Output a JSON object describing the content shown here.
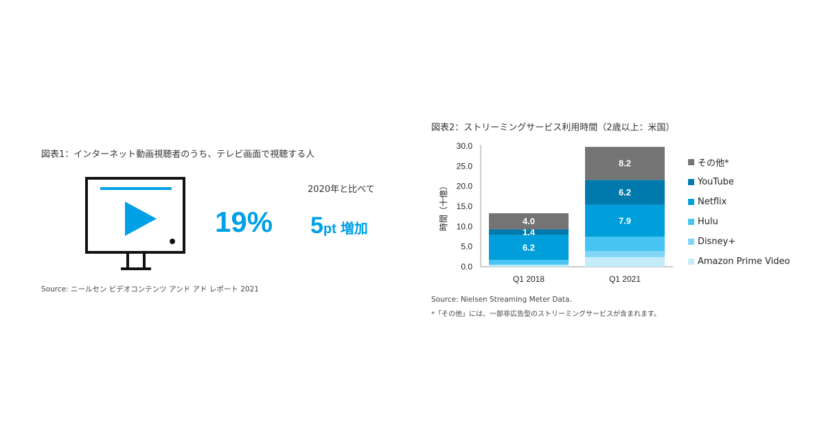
{
  "figure1": {
    "title": "図表1：インターネット動画視聴者のうち、テレビ画面で視聴する人",
    "percentage": "19%",
    "compare_label": "2020年と比べて",
    "increase_number": "5",
    "increase_unit": "pt",
    "increase_word": "増加",
    "source": "Source: ニールセン ビデオコンテンツ アンド アド レポート 2021",
    "icon": "tv-play-icon",
    "accent_color": "#00a0e6"
  },
  "figure2": {
    "title": "図表2：ストリーミングサービス利用時間（2歳以上：米国）",
    "source": "Source: Nielsen Streaming Meter Data.",
    "note": "*「その他」には、一部非広告型のストリーミングサービスが含まれます。"
  },
  "chart_data": {
    "type": "bar",
    "stacked": true,
    "categories": [
      "Q1 2018",
      "Q1 2021"
    ],
    "ylabel": "時間（十億）",
    "ylim": [
      0,
      30
    ],
    "yticks": [
      "0.0",
      "5.0",
      "10.0",
      "15.0",
      "20.0",
      "25.0",
      "30.0"
    ],
    "grid": false,
    "legend_position": "right",
    "series": [
      {
        "name": "Amazon Prime Video",
        "color": "#c5ecfa",
        "values": [
          0.4,
          2.4
        ],
        "labels": [
          "",
          ""
        ]
      },
      {
        "name": "Disney+",
        "color": "#7fd6f6",
        "values": [
          0.2,
          1.5
        ],
        "labels": [
          "",
          ""
        ]
      },
      {
        "name": "Hulu",
        "color": "#47c4f1",
        "values": [
          1.1,
          3.6
        ],
        "labels": [
          "",
          ""
        ]
      },
      {
        "name": "Netflix",
        "color": "#009fdc",
        "values": [
          6.2,
          7.9
        ],
        "labels": [
          "6.2",
          "7.9"
        ]
      },
      {
        "name": "YouTube",
        "color": "#0079ad",
        "values": [
          1.4,
          6.2
        ],
        "labels": [
          "1.4",
          "6.2"
        ]
      },
      {
        "name": "その他*",
        "color": "#747474",
        "values": [
          4.0,
          8.2
        ],
        "labels": [
          "4.0",
          "8.2"
        ]
      }
    ],
    "legend_order": [
      "その他*",
      "YouTube",
      "Netflix",
      "Hulu",
      "Disney+",
      "Amazon Prime Video"
    ]
  }
}
